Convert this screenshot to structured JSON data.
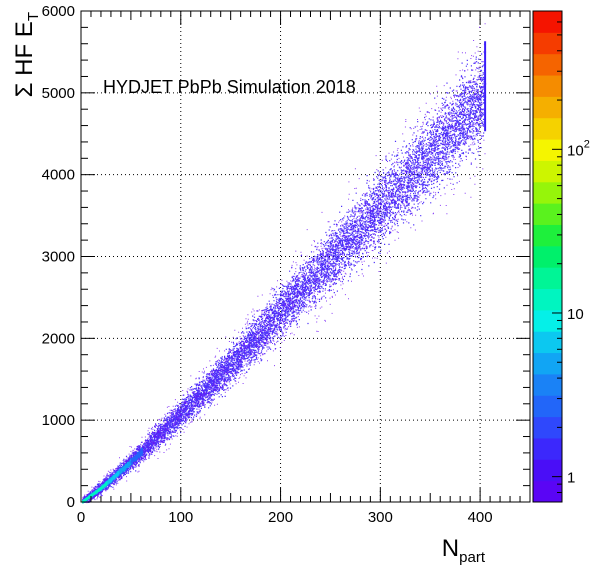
{
  "chart_data": {
    "type": "heatmap",
    "title": "",
    "annotation": "HYDJET PbPb Simulation 2018",
    "xlabel": {
      "main": "N",
      "sub": "part"
    },
    "ylabel": {
      "sigma": "Σ",
      "main": " HF E",
      "sub": "T"
    },
    "xlim": [
      0,
      450
    ],
    "ylim": [
      0,
      6000
    ],
    "x_ticks": [
      0,
      100,
      200,
      300,
      400
    ],
    "y_ticks": [
      0,
      1000,
      2000,
      3000,
      4000,
      5000,
      6000
    ],
    "x_tick_labels": [
      "0",
      "100",
      "200",
      "300",
      "400"
    ],
    "y_tick_labels": [
      "0",
      "1000",
      "2000",
      "3000",
      "4000",
      "5000",
      "6000"
    ],
    "grid": true,
    "colorbar": {
      "scale": "log",
      "min": 0.7,
      "max": 700,
      "labels": [
        {
          "value": 1,
          "base": "1",
          "exp": ""
        },
        {
          "value": 10,
          "base": "10",
          "exp": ""
        },
        {
          "value": 100,
          "base": "10",
          "exp": "2"
        }
      ],
      "colors": [
        "#5a05f5",
        "#4a0ef7",
        "#3c28fc",
        "#2f48fc",
        "#2266f9",
        "#1a82f6",
        "#11a5f4",
        "#0cc8f0",
        "#05f0e8",
        "#00f5c0",
        "#00f596",
        "#00f06b",
        "#1ef03c",
        "#5af21e",
        "#96f50a",
        "#cdf500",
        "#f5f500",
        "#f5d200",
        "#f5af00",
        "#f58c00",
        "#f56400",
        "#f53c00",
        "#f51400"
      ]
    },
    "band": {
      "x_range": [
        1,
        405
      ],
      "center_at_x": [
        [
          0,
          0
        ],
        [
          20,
          180
        ],
        [
          50,
          500
        ],
        [
          100,
          1080
        ],
        [
          150,
          1680
        ],
        [
          200,
          2330
        ],
        [
          250,
          2960
        ],
        [
          300,
          3600
        ],
        [
          350,
          4250
        ],
        [
          405,
          4980
        ]
      ],
      "density_peak_x": 20
    }
  }
}
